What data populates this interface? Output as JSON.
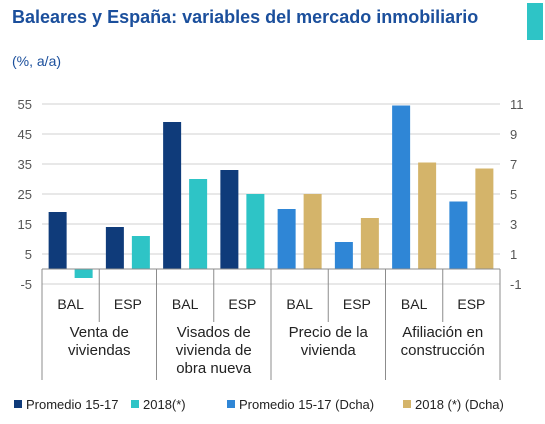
{
  "title": "Baleares y España: variables del mercado inmobiliario",
  "subtitle": "(%, a/a)",
  "colors": {
    "title": "#1b4f9c",
    "corner_mark": "#2ec4c6",
    "grid": "#d0d0d0",
    "axis": "#8c8c8c"
  },
  "chart_data": {
    "type": "bar",
    "y_left": {
      "min": -5,
      "max": 55,
      "ticks": [
        "55",
        "45",
        "35",
        "25",
        "15",
        "5",
        "-5"
      ]
    },
    "y_right": {
      "min": -1,
      "max": 11,
      "ticks": [
        "11",
        "9",
        "7",
        "5",
        "3",
        "1",
        "-1"
      ]
    },
    "grid": true,
    "legend_position": "bottom",
    "groups": [
      {
        "label": "BAL",
        "category": 0,
        "bars": [
          {
            "series": 0,
            "value": 19
          },
          {
            "series": 1,
            "value": -3
          }
        ]
      },
      {
        "label": "ESP",
        "category": 0,
        "bars": [
          {
            "series": 0,
            "value": 14
          },
          {
            "series": 1,
            "value": 11
          }
        ]
      },
      {
        "label": "BAL",
        "category": 1,
        "bars": [
          {
            "series": 0,
            "value": 49
          },
          {
            "series": 1,
            "value": 30
          }
        ]
      },
      {
        "label": "ESP",
        "category": 1,
        "bars": [
          {
            "series": 0,
            "value": 33
          },
          {
            "series": 1,
            "value": 25
          }
        ]
      },
      {
        "label": "BAL",
        "category": 2,
        "bars": [
          {
            "series": 2,
            "value": 4
          },
          {
            "series": 3,
            "value": 5
          }
        ]
      },
      {
        "label": "ESP",
        "category": 2,
        "bars": [
          {
            "series": 2,
            "value": 1.8
          },
          {
            "series": 3,
            "value": 3.4
          }
        ]
      },
      {
        "label": "BAL",
        "category": 3,
        "bars": [
          {
            "series": 2,
            "value": 10.9
          },
          {
            "series": 3,
            "value": 7.1
          }
        ]
      },
      {
        "label": "ESP",
        "category": 3,
        "bars": [
          {
            "series": 2,
            "value": 4.5
          },
          {
            "series": 3,
            "value": 6.7
          }
        ]
      }
    ],
    "categories": [
      {
        "lines": [
          "Venta de",
          "viviendas"
        ]
      },
      {
        "lines": [
          "Visados de",
          "vivienda de",
          "obra nueva"
        ]
      },
      {
        "lines": [
          "Precio de la",
          "vivienda"
        ]
      },
      {
        "lines": [
          "Afiliación en",
          "construcción"
        ]
      }
    ],
    "series": [
      {
        "name": "Promedio 15-17",
        "color": "#0f3b7a",
        "axis": "left"
      },
      {
        "name": "2018(*)",
        "color": "#2ec4c6",
        "axis": "left"
      },
      {
        "name": "Promedio 15-17 (Dcha)",
        "color": "#2f86d6",
        "axis": "right"
      },
      {
        "name": "2018 (*) (Dcha)",
        "color": "#d4b46a",
        "axis": "right"
      }
    ]
  }
}
